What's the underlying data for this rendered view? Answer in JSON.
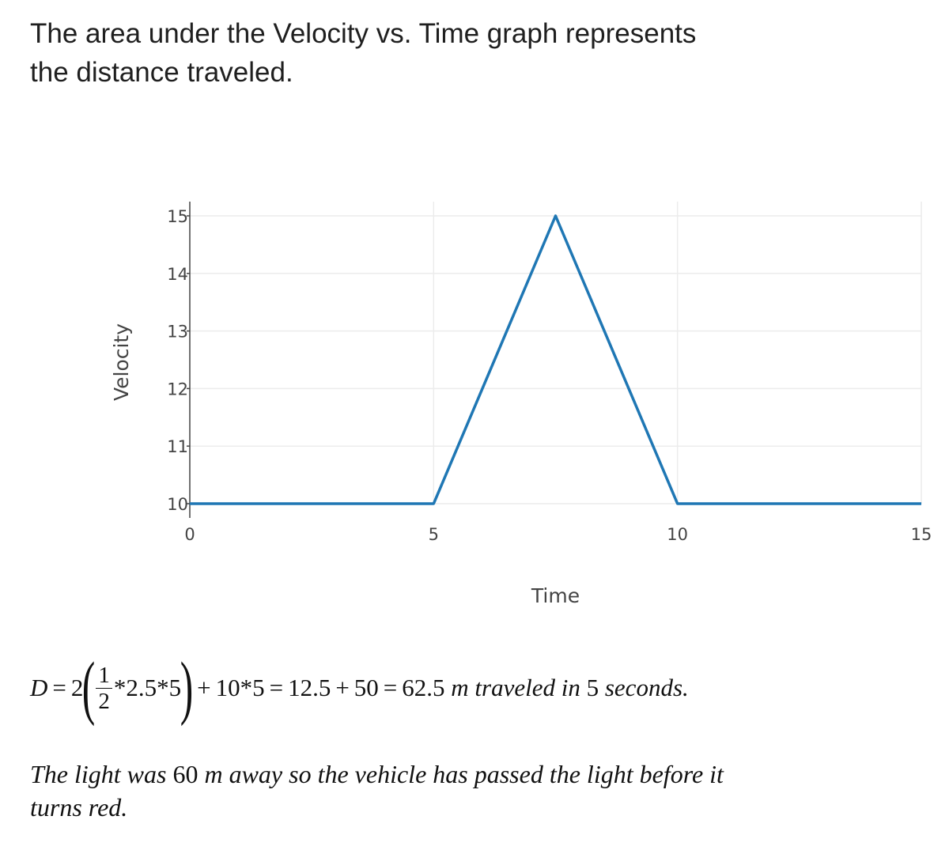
{
  "intro_text": "The area under the Velocity vs. Time graph represents the distance traveled.",
  "chart_data": {
    "type": "line",
    "title": "",
    "xlabel": "Time",
    "ylabel": "Velocity",
    "xlim": [
      0,
      15
    ],
    "ylim": [
      10,
      15
    ],
    "x_ticks": [
      0,
      5,
      10,
      15
    ],
    "y_ticks": [
      10,
      11,
      12,
      13,
      14,
      15
    ],
    "grid": true,
    "line_color": "#1f77b4",
    "series": [
      {
        "name": "Velocity",
        "x": [
          0,
          5,
          7.5,
          10,
          15
        ],
        "y": [
          10,
          10,
          15,
          10,
          10
        ]
      }
    ]
  },
  "formula": {
    "lhs": "D",
    "eq": "=",
    "coef": "2",
    "frac_num": "1",
    "frac_den": "2",
    "inner": "*2.5*5",
    "plus1": "+",
    "term2": "10*5",
    "eq2": "=",
    "val1": "12.5",
    "plus2": "+",
    "val2": "50",
    "eq3": "=",
    "result": "62.5",
    "unit": "m traveled in",
    "seconds_value": "5",
    "seconds_word": "seconds."
  },
  "conclusion": {
    "pre": "The light was",
    "distance": "60",
    "post": "m away so the vehicle has passed the light before it turns red."
  }
}
